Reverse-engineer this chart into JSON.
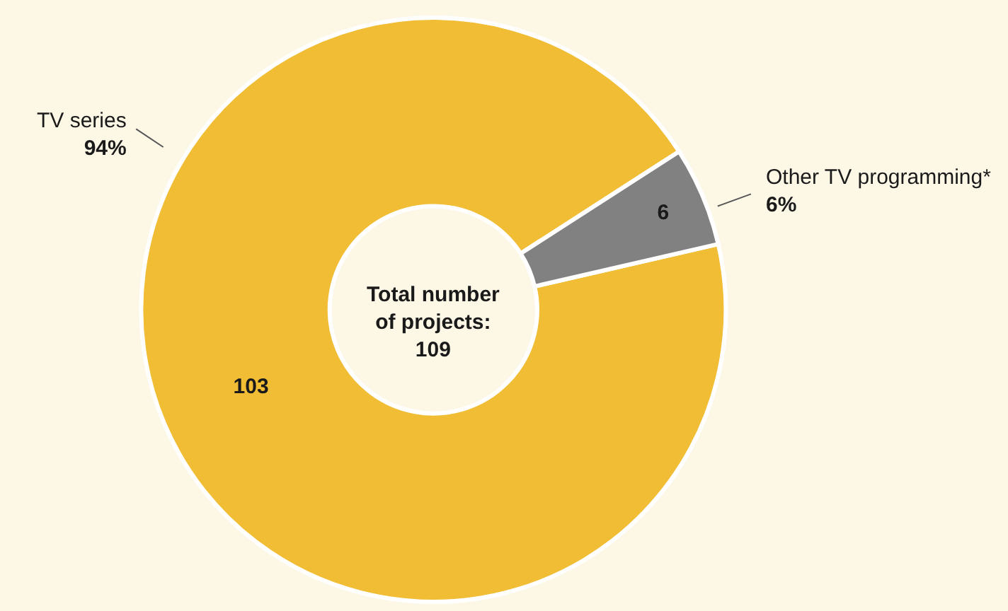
{
  "chart_data": {
    "type": "donut",
    "categories": [
      "TV series",
      "Other TV programming*"
    ],
    "values": [
      103,
      6
    ],
    "colors": [
      "#f0bd34",
      "#818181"
    ],
    "data_labels": true,
    "annotations": [
      {
        "text": "94%",
        "x": "TV series"
      },
      {
        "text": "6%",
        "x": "Other TV programming*"
      },
      "Total number\nof projects:\n109"
    ],
    "legend": false
  }
}
